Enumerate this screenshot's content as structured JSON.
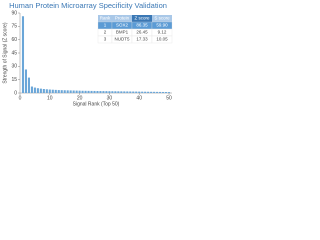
{
  "chart_data": {
    "type": "bar",
    "title": "Human Protein Microarray Specificity Validation",
    "x_label": "Signal Rank (Top 50)",
    "y_label": "Strength of Signal (Z score)",
    "color": "#6aa6d8",
    "x": [
      1,
      2,
      3,
      4,
      5,
      6,
      7,
      8,
      9,
      10,
      11,
      12,
      13,
      14,
      15,
      16,
      17,
      18,
      19,
      20,
      21,
      22,
      23,
      24,
      25,
      26,
      27,
      28,
      29,
      30,
      31,
      32,
      33,
      34,
      35,
      36,
      37,
      38,
      39,
      40,
      41,
      42,
      43,
      44,
      45,
      46,
      47,
      48,
      49,
      50
    ],
    "values": [
      86.35,
      26.45,
      17.33,
      7.28,
      6.1,
      5.4,
      4.9,
      4.5,
      4.2,
      3.9,
      3.7,
      3.5,
      3.3,
      3.2,
      3.1,
      3.0,
      2.9,
      2.8,
      2.7,
      2.6,
      2.5,
      2.45,
      2.4,
      2.35,
      2.3,
      2.25,
      2.2,
      2.15,
      2.1,
      2.05,
      2.0,
      1.95,
      1.9,
      1.85,
      1.8,
      1.75,
      1.7,
      1.65,
      1.6,
      1.55,
      1.5,
      1.45,
      1.4,
      1.35,
      1.3,
      1.25,
      1.2,
      1.15,
      1.1,
      1.05
    ],
    "xlim": [
      0,
      51
    ],
    "xticks": [
      0,
      10,
      20,
      30,
      40,
      50
    ],
    "ylim": [
      0,
      90
    ],
    "yticks": [
      0,
      15,
      30,
      45,
      60,
      75,
      90
    ],
    "table": {
      "columns": [
        "Rank",
        "Protein",
        "Z score",
        "S score"
      ],
      "rows": [
        [
          "1",
          "SOX2",
          "86.35",
          "59.90"
        ],
        [
          "2",
          "BMP1",
          "26.45",
          "9.12"
        ],
        [
          "3",
          "NUDT5",
          "17.33",
          "10.05"
        ]
      ]
    }
  }
}
